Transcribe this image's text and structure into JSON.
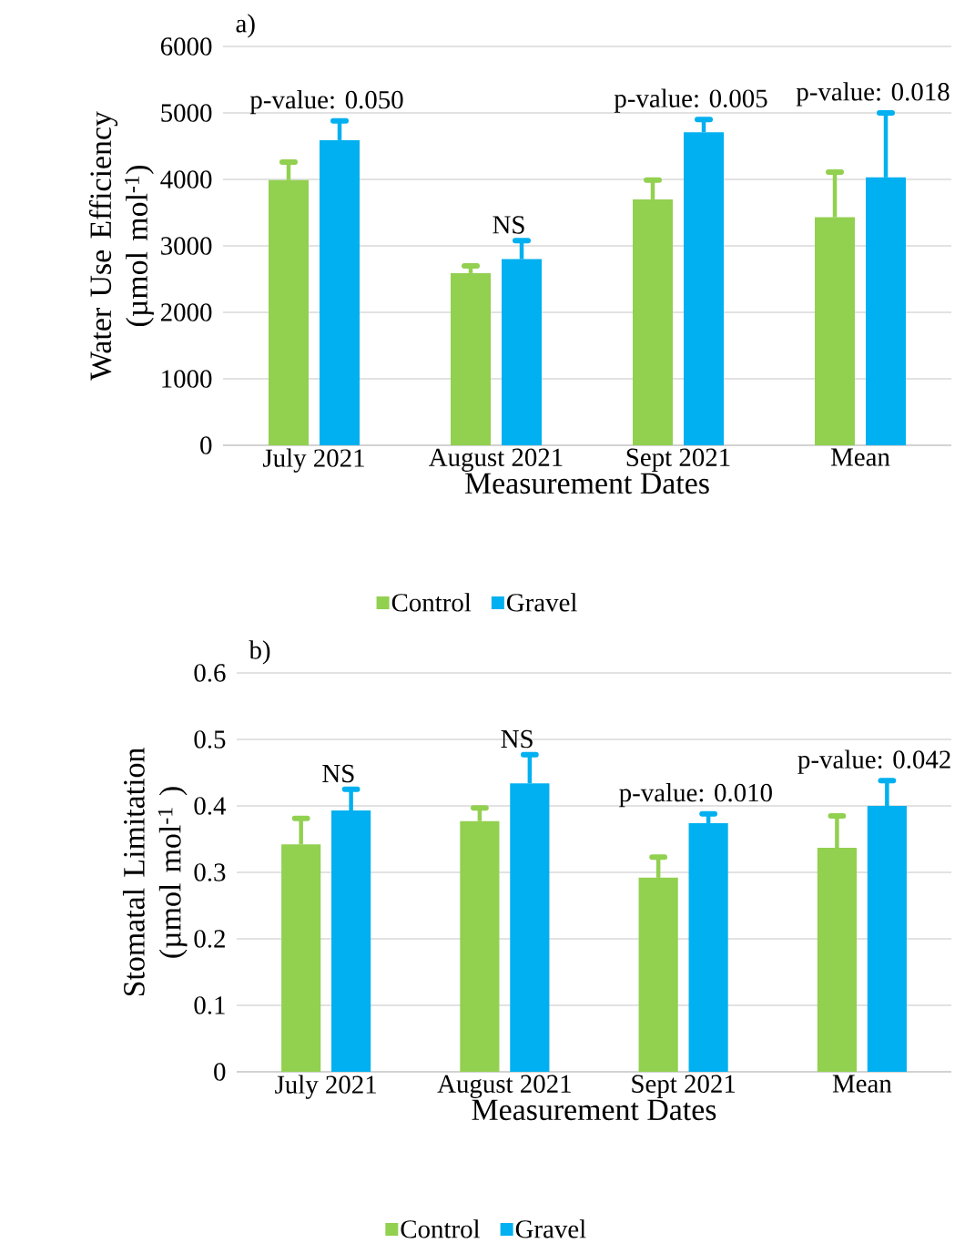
{
  "chart_data": [
    {
      "type": "bar",
      "title": "a)",
      "xlabel": "Measurement Dates",
      "ylabel": "Water Use Efficiency (µmol mol$^{-1}$)",
      "categories": [
        "July 2021",
        "August 2021",
        "Sept 2021",
        "Mean"
      ],
      "series": [
        {
          "name": "Control",
          "color": "#92d050",
          "values": [
            3990,
            2590,
            3700,
            3430
          ],
          "errors": [
            [
              3990,
              4260
            ],
            [
              2590,
              2700
            ],
            [
              3700,
              3990
            ],
            [
              3430,
              4110
            ]
          ]
        },
        {
          "name": "Gravel",
          "color": "#00b0f0",
          "values": [
            4590,
            2800,
            4710,
            4030
          ],
          "errors": [
            [
              4590,
              4880
            ],
            [
              2800,
              3080
            ],
            [
              4710,
              4900
            ],
            [
              4030,
              5000
            ]
          ]
        }
      ],
      "ylim": [
        0,
        6000
      ],
      "yticks": [
        0,
        1000,
        2000,
        3000,
        4000,
        5000,
        6000
      ],
      "grid": "y",
      "legend": "bottom",
      "annotations": [
        "p-value: 0.050",
        "NS",
        "p-value: 0.005",
        "p-value: 0.018"
      ]
    },
    {
      "type": "bar",
      "title": "b)",
      "xlabel": "Measurement Dates",
      "ylabel": "Stomatal Limitation (µmol mol$^{-1}$ )",
      "categories": [
        "July 2021",
        "August 2021",
        "Sept 2021",
        "Mean"
      ],
      "series": [
        {
          "name": "Control",
          "color": "#92d050",
          "values": [
            0.342,
            0.377,
            0.292,
            0.337
          ],
          "errors": [
            [
              0.342,
              0.381
            ],
            [
              0.377,
              0.397
            ],
            [
              0.292,
              0.323
            ],
            [
              0.337,
              0.385
            ]
          ]
        },
        {
          "name": "Gravel",
          "color": "#00b0f0",
          "values": [
            0.393,
            0.434,
            0.374,
            0.4
          ],
          "errors": [
            [
              0.393,
              0.425
            ],
            [
              0.434,
              0.477
            ],
            [
              0.374,
              0.388
            ],
            [
              0.4,
              0.438
            ]
          ]
        }
      ],
      "ylim": [
        0,
        0.6
      ],
      "yticks": [
        0,
        0.1,
        0.2,
        0.3,
        0.4,
        0.5,
        0.6
      ],
      "grid": "y",
      "legend": "bottom",
      "annotations": [
        "NS",
        "NS",
        "p-value: 0.010",
        "p-value: 0.042"
      ]
    }
  ]
}
